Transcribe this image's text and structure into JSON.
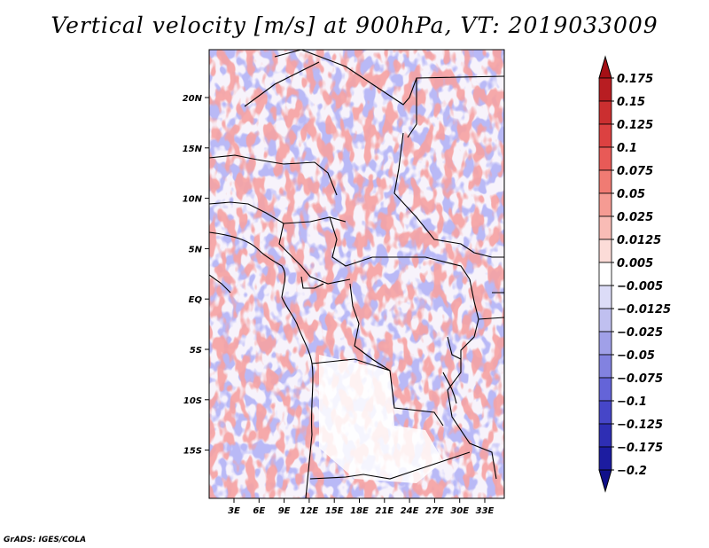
{
  "title": "Vertical velocity [m/s] at 900hPa, VT: 2019033009",
  "credit": "GrADS: IGES/COLA",
  "lat_labels": [
    "20N",
    "15N",
    "10N",
    "5N",
    "EQ",
    "5S",
    "10S",
    "15S"
  ],
  "lon_labels": [
    "3E",
    "6E",
    "9E",
    "12E",
    "15E",
    "18E",
    "21E",
    "24E",
    "27E",
    "30E",
    "33E"
  ],
  "colorbar": {
    "labels": [
      "0.175",
      "0.15",
      "0.125",
      "0.1",
      "0.075",
      "0.05",
      "0.025",
      "0.0125",
      "0.005",
      "−0.005",
      "−0.0125",
      "−0.025",
      "−0.05",
      "−0.075",
      "−0.1",
      "−0.125",
      "−0.175",
      "−0.2"
    ],
    "colors": [
      "#a50f15",
      "#b81d22",
      "#cb2f30",
      "#dc4141",
      "#e85a57",
      "#f07b73",
      "#f59b93",
      "#f9bcb6",
      "#fcdcd8",
      "#ffffff",
      "#dcdcf7",
      "#c0c0f0",
      "#a0a0e8",
      "#8282e0",
      "#6464d8",
      "#4646c8",
      "#2e2eb4",
      "#1c1ca0",
      "#10108a"
    ]
  },
  "map": {
    "lat_range": [
      -19.5,
      24.5
    ],
    "lon_range": [
      0.8,
      34.0
    ],
    "field": "vertical velocity",
    "level": "900hPa"
  }
}
